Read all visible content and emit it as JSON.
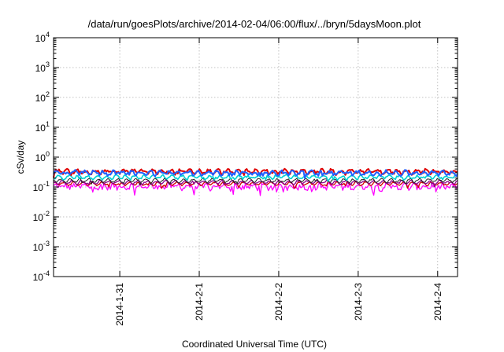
{
  "chart_data": {
    "type": "line",
    "title": "/data/run/goesPlots/archive/2014-02-04/06:00/flux/../bryn/5daysMoon.plot",
    "xlabel": "Coordinated Universal Time (UTC)",
    "ylabel": "cSv/day",
    "yscale": "log",
    "ylim": [
      0.0001,
      10000
    ],
    "y_ticks": [
      {
        "base": "10",
        "exp": "-4"
      },
      {
        "base": "10",
        "exp": "-3"
      },
      {
        "base": "10",
        "exp": "-2"
      },
      {
        "base": "10",
        "exp": "-1"
      },
      {
        "base": "10",
        "exp": "0"
      },
      {
        "base": "10",
        "exp": "1"
      },
      {
        "base": "10",
        "exp": "2"
      },
      {
        "base": "10",
        "exp": "3"
      },
      {
        "base": "10",
        "exp": "4"
      }
    ],
    "xlim": [
      "2014-01-30 04:00",
      "2014-02-04 06:00"
    ],
    "x_ticks": [
      "2014-1-31",
      "2014-2-1",
      "2014-2-2",
      "2014-2-3",
      "2014-2-4"
    ],
    "grid": true,
    "legend": "none",
    "series": [
      {
        "color": "#ff00ff",
        "base": 0.105,
        "noise": 0.22,
        "dips": true,
        "width": 1.3
      },
      {
        "color": "#d00000",
        "base": 0.13,
        "noise": 0.06,
        "dips": false,
        "width": 1.3
      },
      {
        "color": "#8b008b",
        "base": 0.145,
        "noise": 0.07,
        "dips": false,
        "width": 1.3
      },
      {
        "color": "#202020",
        "base": 0.165,
        "noise": 0.07,
        "dips": false,
        "width": 1.0
      },
      {
        "color": "#00d0d0",
        "base": 0.215,
        "noise": 0.1,
        "dips": false,
        "width": 1.6
      },
      {
        "color": "#e00000",
        "base": 0.33,
        "noise": 0.13,
        "dips": false,
        "width": 2.0
      },
      {
        "color": "#2060ff",
        "base": 0.3,
        "noise": 0.13,
        "dips": false,
        "width": 2.0
      }
    ]
  }
}
